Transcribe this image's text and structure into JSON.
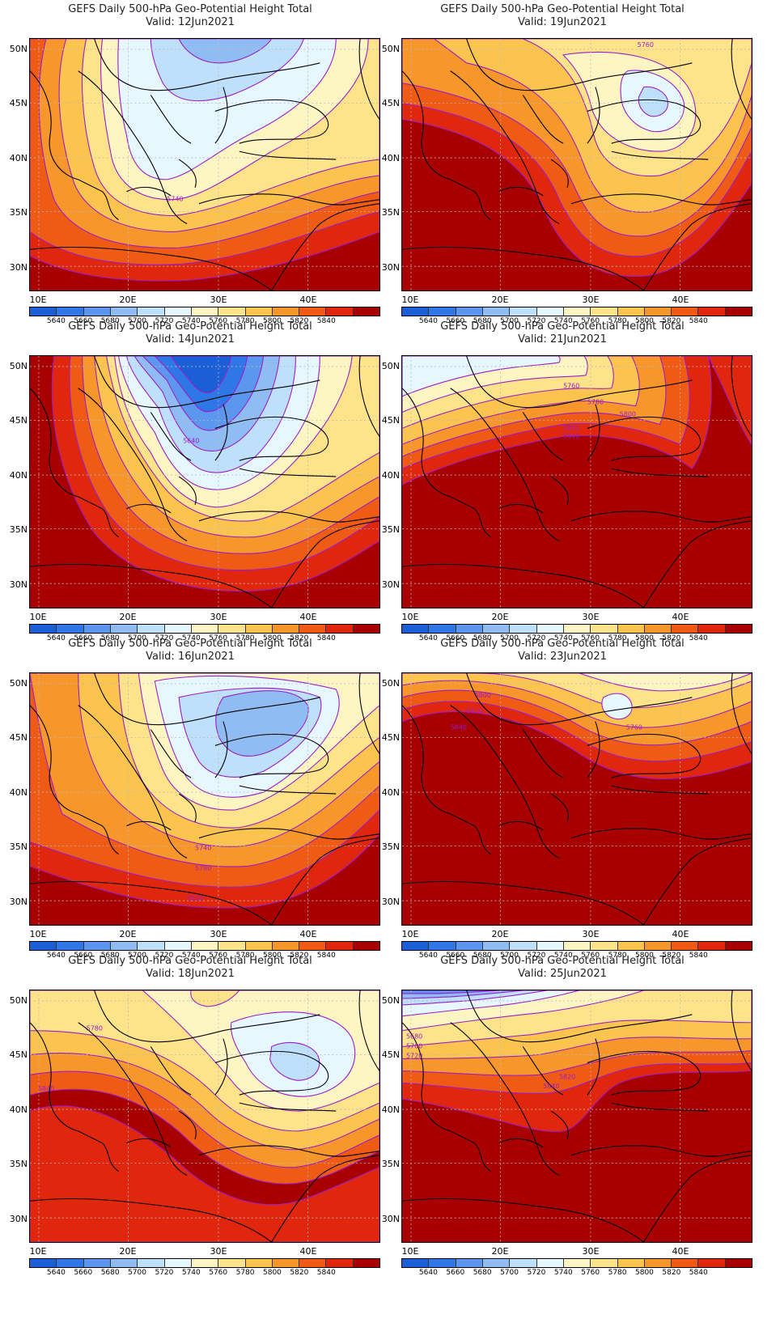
{
  "title_line": "GEFS Daily 500-hPa Geo-Potential Height Total",
  "lat_labels": [
    "50N",
    "45N",
    "40N",
    "35N",
    "30N"
  ],
  "lon_labels": [
    "10E",
    "20E",
    "30E",
    "40E"
  ],
  "colorbar": {
    "labels": [
      "5640",
      "5660",
      "5680",
      "5700",
      "5720",
      "5740",
      "5760",
      "5780",
      "5800",
      "5820",
      "5840"
    ],
    "colors": [
      "#1a5fd6",
      "#2f76e6",
      "#5b97ee",
      "#8fbdf3",
      "#bfe0fb",
      "#e6f7ff",
      "#fdf6c3",
      "#fde389",
      "#fbc44f",
      "#f7962a",
      "#ef5a14",
      "#e0260c",
      "#a80000"
    ]
  },
  "panels": [
    {
      "valid": "Valid: 12Jun2021",
      "contour_labels": [
        "5740"
      ]
    },
    {
      "valid": "Valid: 19Jun2021",
      "contour_labels": [
        "5760"
      ]
    },
    {
      "valid": "Valid: 14Jun2021",
      "contour_labels": [
        "5640"
      ]
    },
    {
      "valid": "Valid: 21Jun2021",
      "contour_labels": [
        "5760",
        "5780",
        "5800",
        "5820",
        "5840"
      ]
    },
    {
      "valid": "Valid: 16Jun2021",
      "contour_labels": [
        "5740",
        "5780",
        "5820"
      ]
    },
    {
      "valid": "Valid: 23Jun2021",
      "contour_labels": [
        "5800",
        "5820",
        "5840",
        "5760"
      ]
    },
    {
      "valid": "Valid: 18Jun2021",
      "contour_labels": [
        "5780",
        "5840"
      ]
    },
    {
      "valid": "Valid: 25Jun2021",
      "contour_labels": [
        "5680",
        "5700",
        "5720",
        "5820",
        "5840"
      ]
    }
  ]
}
